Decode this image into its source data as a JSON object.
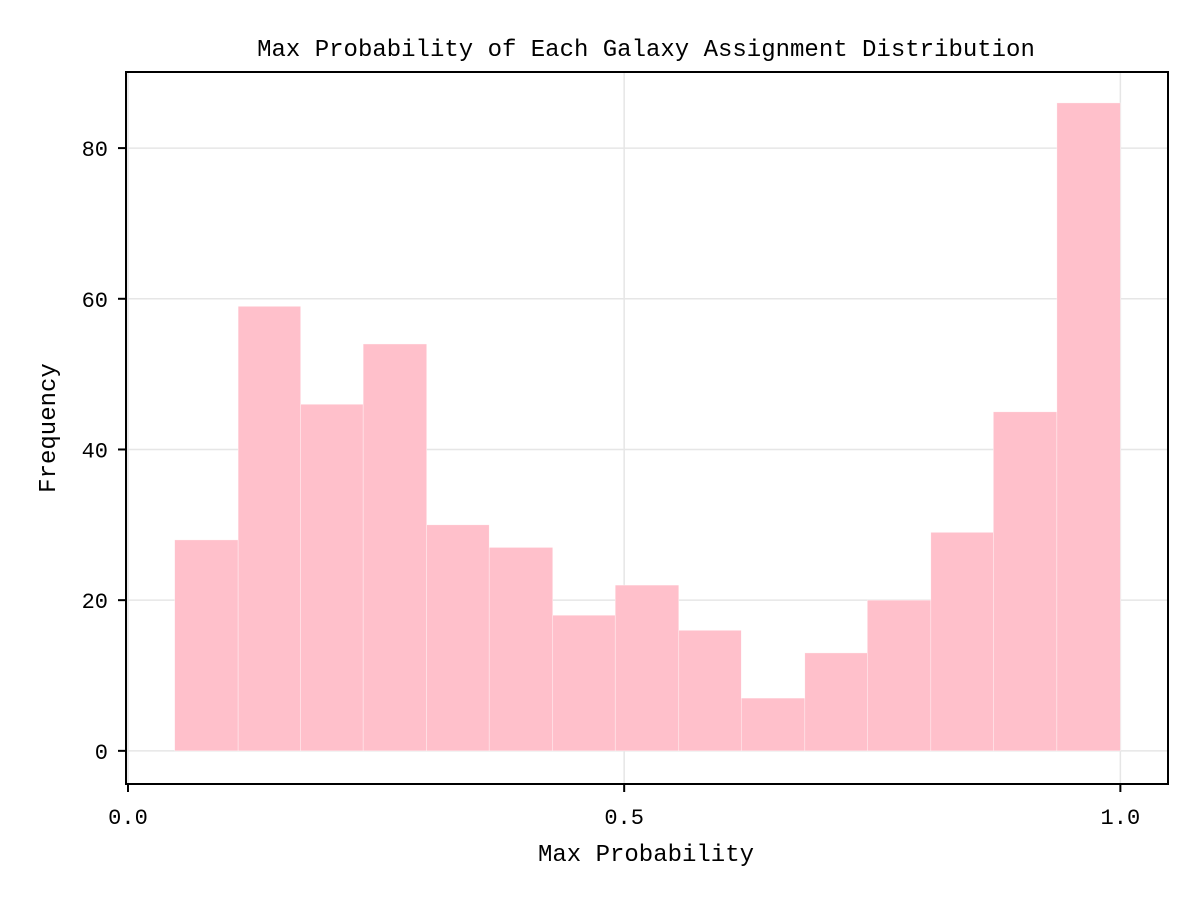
{
  "chart_data": {
    "type": "bar",
    "title": "Max Probability of Each Galaxy Assignment Distribution",
    "xlabel": "Max Probability",
    "ylabel": "Frequency",
    "bins": [
      {
        "x0": 0.047,
        "x1": 0.111,
        "count": 28
      },
      {
        "x0": 0.111,
        "x1": 0.174,
        "count": 59
      },
      {
        "x0": 0.174,
        "x1": 0.237,
        "count": 46
      },
      {
        "x0": 0.237,
        "x1": 0.301,
        "count": 54
      },
      {
        "x0": 0.301,
        "x1": 0.364,
        "count": 30
      },
      {
        "x0": 0.364,
        "x1": 0.428,
        "count": 27
      },
      {
        "x0": 0.428,
        "x1": 0.491,
        "count": 18
      },
      {
        "x0": 0.491,
        "x1": 0.555,
        "count": 22
      },
      {
        "x0": 0.555,
        "x1": 0.618,
        "count": 16
      },
      {
        "x0": 0.618,
        "x1": 0.682,
        "count": 7
      },
      {
        "x0": 0.682,
        "x1": 0.745,
        "count": 13
      },
      {
        "x0": 0.745,
        "x1": 0.809,
        "count": 20
      },
      {
        "x0": 0.809,
        "x1": 0.872,
        "count": 29
      },
      {
        "x0": 0.872,
        "x1": 0.936,
        "count": 45
      },
      {
        "x0": 0.936,
        "x1": 1.0,
        "count": 86
      }
    ],
    "xlim": [
      -0.002,
      1.048
    ],
    "ylim": [
      -4.4,
      90.1
    ],
    "xticks": [
      {
        "value": 0.0,
        "label": "0.0"
      },
      {
        "value": 0.5,
        "label": "0.5"
      },
      {
        "value": 1.0,
        "label": "1.0"
      }
    ],
    "yticks": [
      {
        "value": 0,
        "label": "0"
      },
      {
        "value": 20,
        "label": "20"
      },
      {
        "value": 40,
        "label": "40"
      },
      {
        "value": 60,
        "label": "60"
      },
      {
        "value": 80,
        "label": "80"
      }
    ],
    "grid": true,
    "bar_color": "#ffc0cb",
    "grid_color": "#e6e6e6"
  }
}
